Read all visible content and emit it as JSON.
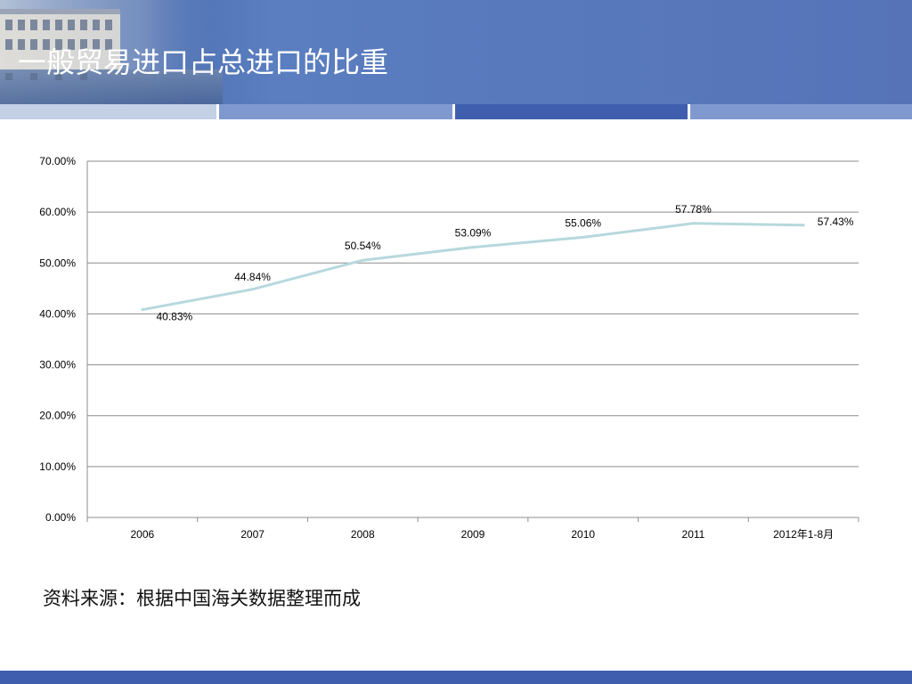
{
  "slide": {
    "title": "一般贸易进口占总进口的比重",
    "source_note": "资料来源：根据中国海关数据整理而成"
  },
  "colors": {
    "header": "#5673b8",
    "stripe_light": "#c3d0e6",
    "stripe_mid": "#7f99cf",
    "stripe_dark": "#3f5fae",
    "line": "#b7d8de",
    "grid": "#8c8c8c",
    "footer": "#3f5fae"
  },
  "chart_data": {
    "type": "line",
    "categories": [
      "2006",
      "2007",
      "2008",
      "2009",
      "2010",
      "2011",
      "2012年1-8月"
    ],
    "series": [
      {
        "values": [
          40.83,
          44.84,
          50.54,
          53.09,
          55.06,
          57.78,
          57.43
        ]
      }
    ],
    "data_labels": [
      "40.83%",
      "44.84%",
      "50.54%",
      "53.09%",
      "55.06%",
      "57.78%",
      "57.43%"
    ],
    "y_ticks": [
      "0.00%",
      "10.00%",
      "20.00%",
      "30.00%",
      "40.00%",
      "50.00%",
      "60.00%",
      "70.00%"
    ],
    "ylim": [
      0,
      70
    ],
    "grid": true,
    "legend": "none"
  }
}
